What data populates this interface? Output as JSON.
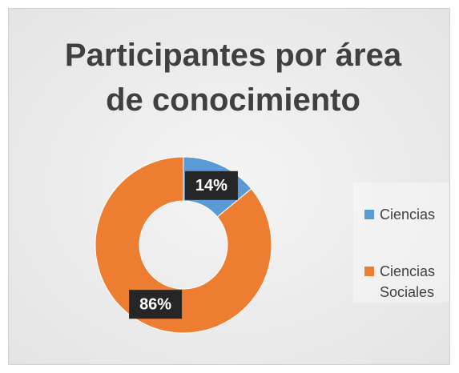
{
  "chart_data": {
    "type": "donut",
    "title": "Participantes por área de conocimiento",
    "categories": [
      "Ciencias",
      "Ciencias Sociales"
    ],
    "values": [
      14,
      86
    ],
    "value_labels": [
      "14%",
      "86%"
    ],
    "colors": [
      "#5b9bd5",
      "#ed7d31"
    ],
    "legend": "right"
  }
}
